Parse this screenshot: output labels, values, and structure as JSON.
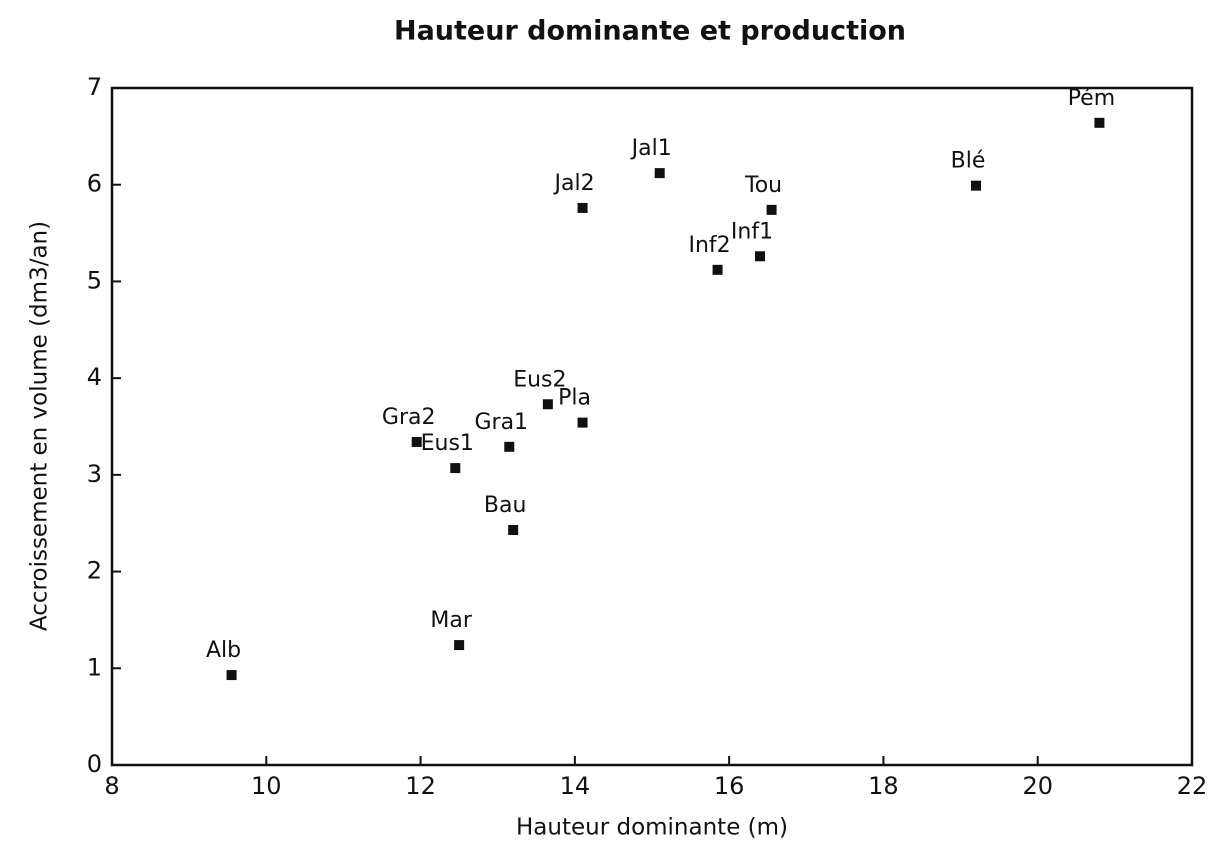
{
  "chart_data": {
    "type": "scatter",
    "title": "Hauteur dominante et production",
    "x_label": "Hauteur dominante (m)",
    "y_label": "Accroissement en volume (dm3/an)",
    "labels": [
      "Alb",
      "Mar",
      "Bau",
      "Eus1",
      "Gra2",
      "Gra1",
      "Eus2",
      "Pla",
      "Jal2",
      "Jal1",
      "Inf2",
      "Inf1",
      "Tou",
      "Blé",
      "Pém"
    ],
    "x": [
      9.55,
      12.5,
      13.2,
      12.45,
      11.95,
      13.15,
      13.65,
      14.1,
      14.1,
      15.1,
      15.85,
      16.4,
      16.55,
      19.2,
      20.8
    ],
    "y": [
      0.93,
      1.24,
      2.43,
      3.07,
      3.34,
      3.29,
      3.73,
      3.54,
      5.76,
      6.12,
      5.12,
      5.26,
      5.74,
      5.99,
      6.64
    ],
    "color": "#111111",
    "xlim": [
      8,
      22
    ],
    "xticks": [
      8,
      10,
      12,
      14,
      16,
      18,
      20,
      22
    ],
    "ylim": [
      0,
      7
    ],
    "yticks": [
      0,
      1,
      2,
      3,
      4,
      5,
      6,
      7
    ],
    "grid": false
  }
}
